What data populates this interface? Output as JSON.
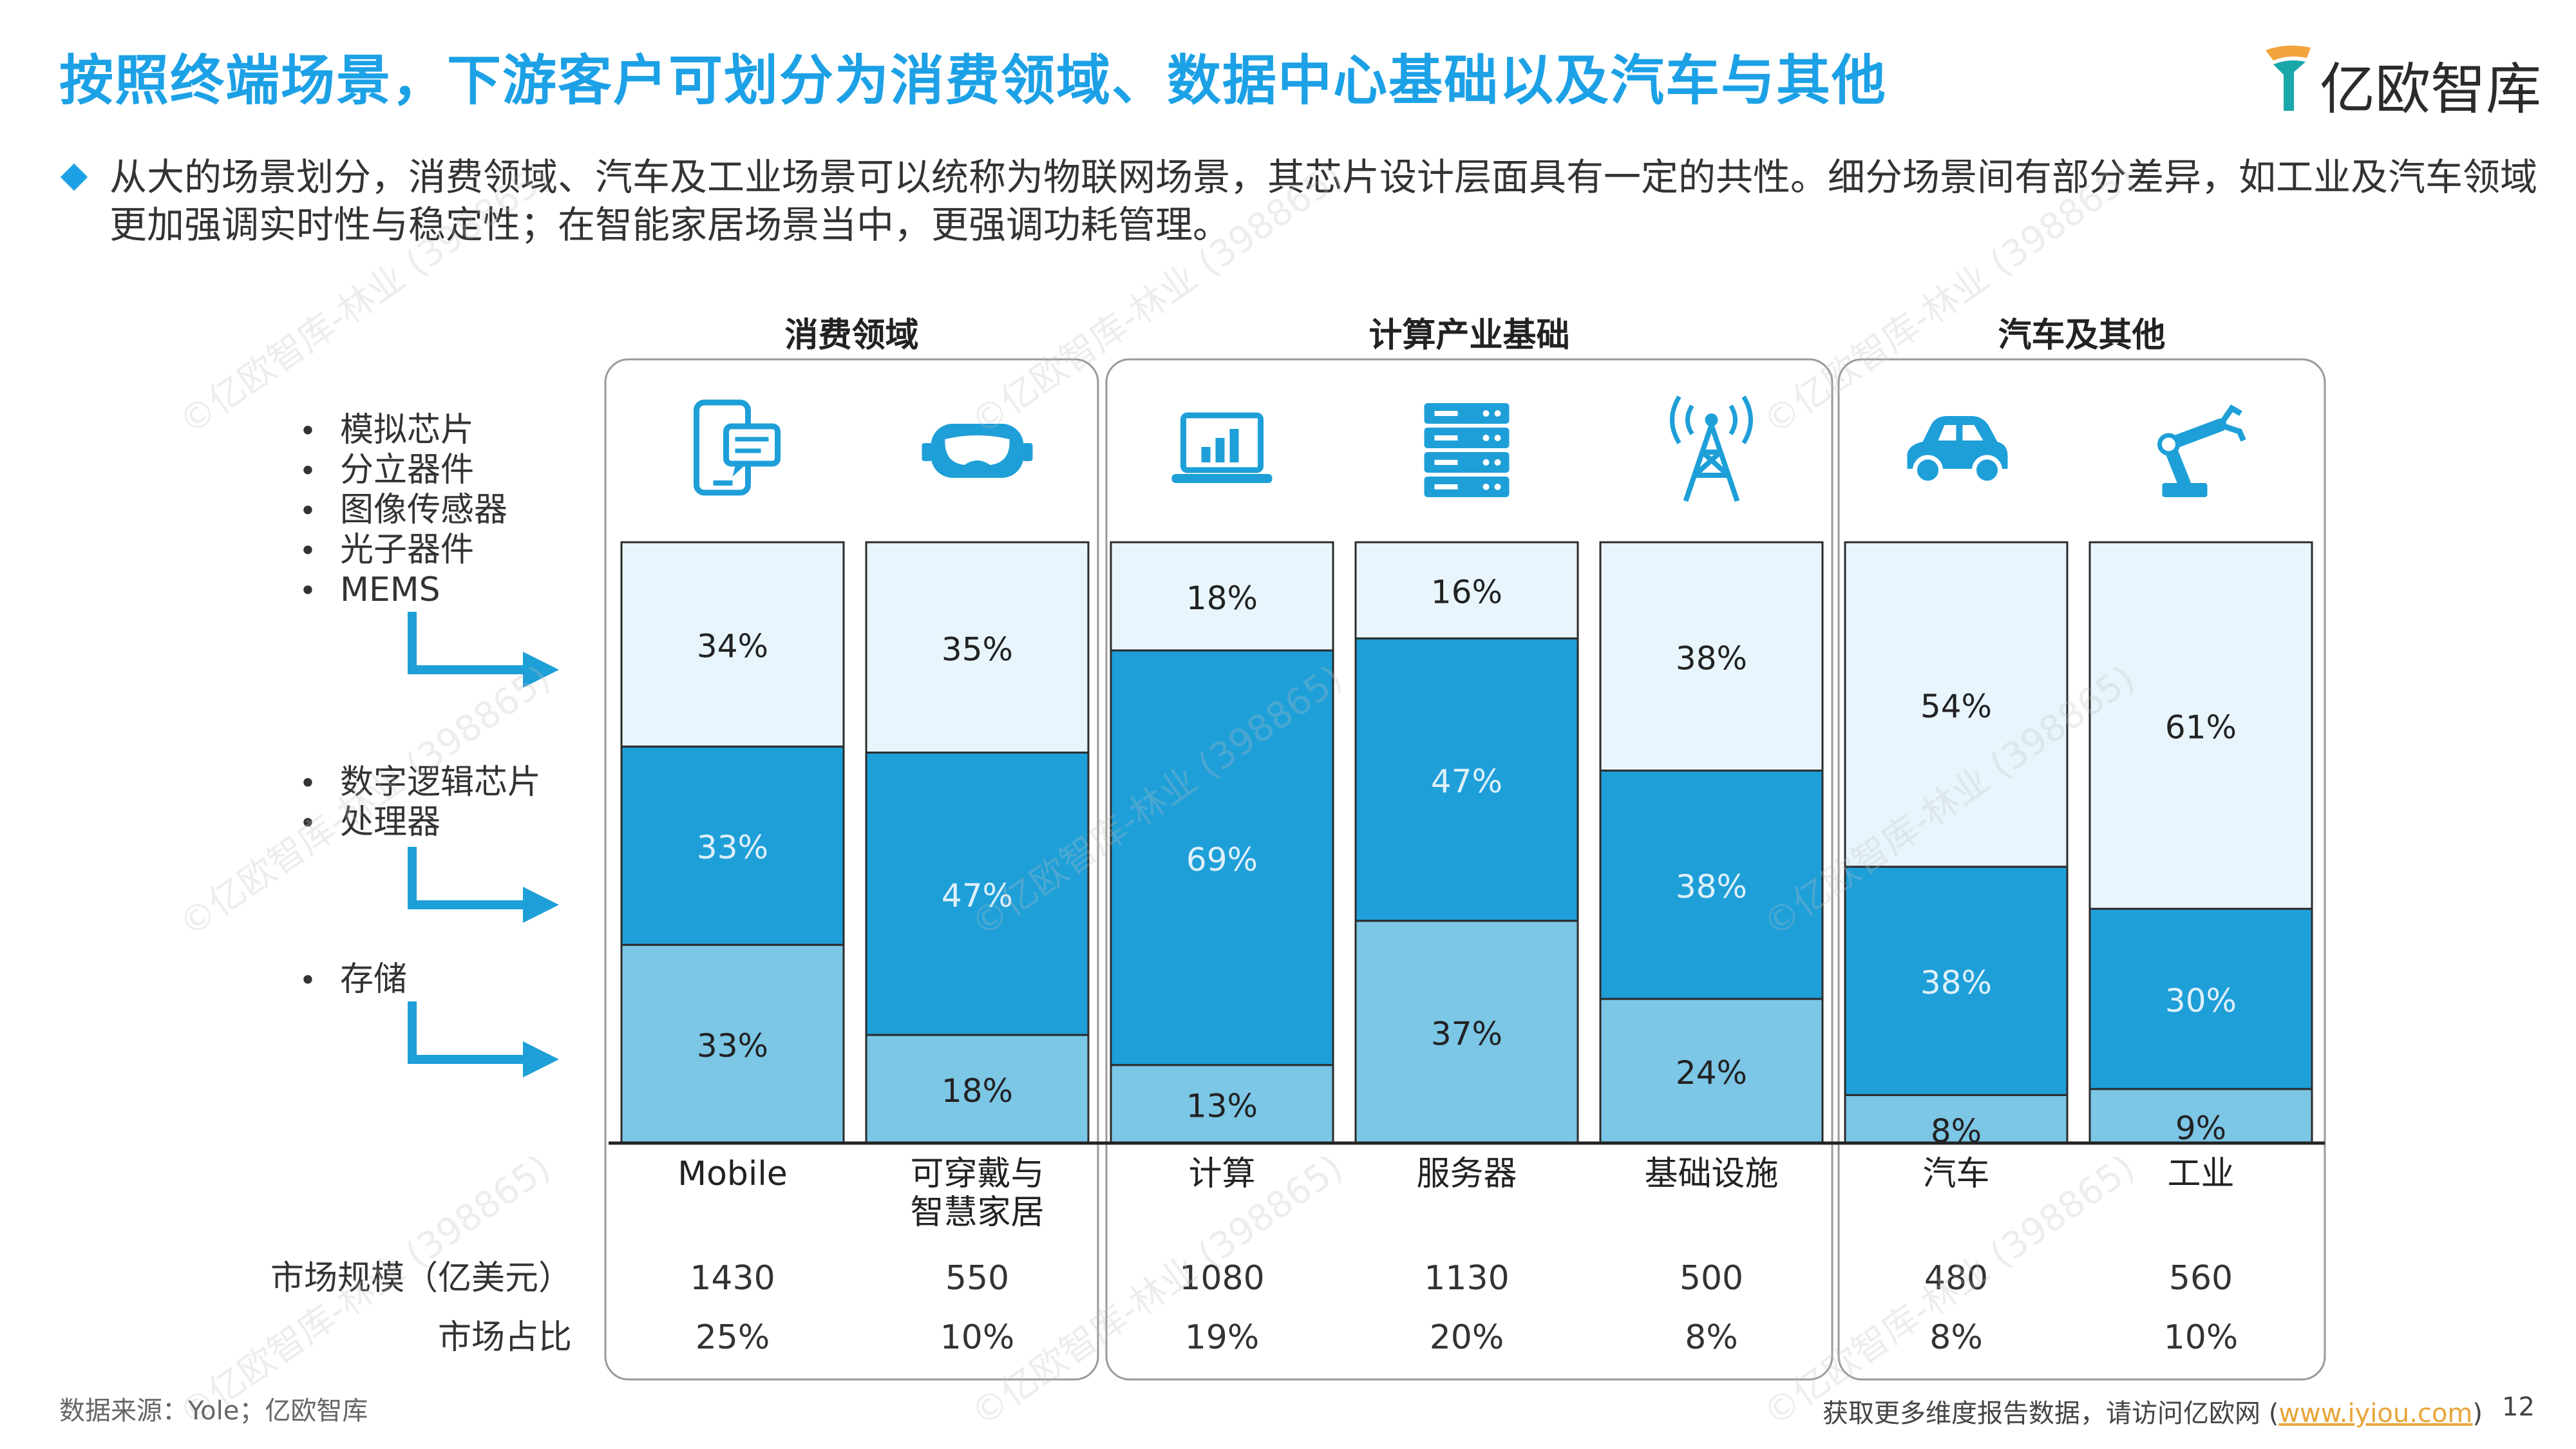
{
  "header": {
    "title": "按照终端场景，下游客户可划分为消费领域、数据中心基础以及汽车与其他",
    "logo_text": "亿欧智库",
    "bullet": "从大的场景划分，消费领域、汽车及工业场景可以统称为物联网场景，其芯片设计层面具有一定的共性。细分场景间有部分差异，如工业及汽车领域更加强调实时性与稳定性；在智能家居场景当中，更强调功耗管理。"
  },
  "colors": {
    "accent": "#1da1e6",
    "top": "#e8f5fc",
    "mid": "#1e9fd8",
    "bottom": "#7cc6e6",
    "logo_teal": "#1aa7a9",
    "logo_orange": "#f3a43c"
  },
  "chip_groups": [
    {
      "items": [
        "模拟芯片",
        "分立器件",
        "图像传感器",
        "光子器件",
        "MEMS"
      ]
    },
    {
      "items": [
        "数字逻辑芯片",
        "处理器"
      ]
    },
    {
      "items": [
        "存储"
      ]
    }
  ],
  "chart_data": {
    "type": "bar",
    "stacked": true,
    "groups": [
      {
        "label": "消费领域",
        "columns": [
          0,
          1
        ]
      },
      {
        "label": "计算产业基础",
        "columns": [
          2,
          3,
          4
        ]
      },
      {
        "label": "汽车及其他",
        "columns": [
          5,
          6
        ]
      }
    ],
    "categories": [
      "Mobile",
      "可穿戴与\n智慧家居",
      "计算",
      "服务器",
      "基础设施",
      "汽车",
      "工业"
    ],
    "category_icons": [
      "phone-chat-icon",
      "vr-goggles-icon",
      "laptop-chart-icon",
      "server-icon",
      "antenna-tower-icon",
      "car-icon",
      "robot-arm-icon"
    ],
    "series": [
      {
        "values": [
          33,
          18,
          13,
          37,
          24,
          8,
          9
        ]
      },
      {
        "values": [
          33,
          47,
          69,
          47,
          38,
          38,
          30
        ]
      },
      {
        "values": [
          34,
          35,
          18,
          16,
          38,
          54,
          61
        ]
      }
    ],
    "value_labels": [
      [
        "33%",
        "33%",
        "34%"
      ],
      [
        "18%",
        "47%",
        "35%"
      ],
      [
        "13%",
        "69%",
        "18%"
      ],
      [
        "37%",
        "47%",
        "16%"
      ],
      [
        "24%",
        "38%",
        "38%"
      ],
      [
        "8%",
        "38%",
        "54%"
      ],
      [
        "9%",
        "30%",
        "61%"
      ]
    ],
    "table_rows": [
      {
        "label": "市场规模（亿美元）",
        "values": [
          "1430",
          "550",
          "1080",
          "1130",
          "500",
          "480",
          "560"
        ]
      },
      {
        "label": "市场占比",
        "values": [
          "25%",
          "10%",
          "19%",
          "20%",
          "8%",
          "8%",
          "10%"
        ]
      }
    ]
  },
  "footer": {
    "source": "数据来源：Yole；亿欧智库",
    "more_prefix": "获取更多维度报告数据，请访问亿欧网 (",
    "more_link": "www.iyiou.com",
    "more_suffix": ")",
    "page": "12"
  },
  "watermark": "©亿欧智库-林业 (398865)"
}
